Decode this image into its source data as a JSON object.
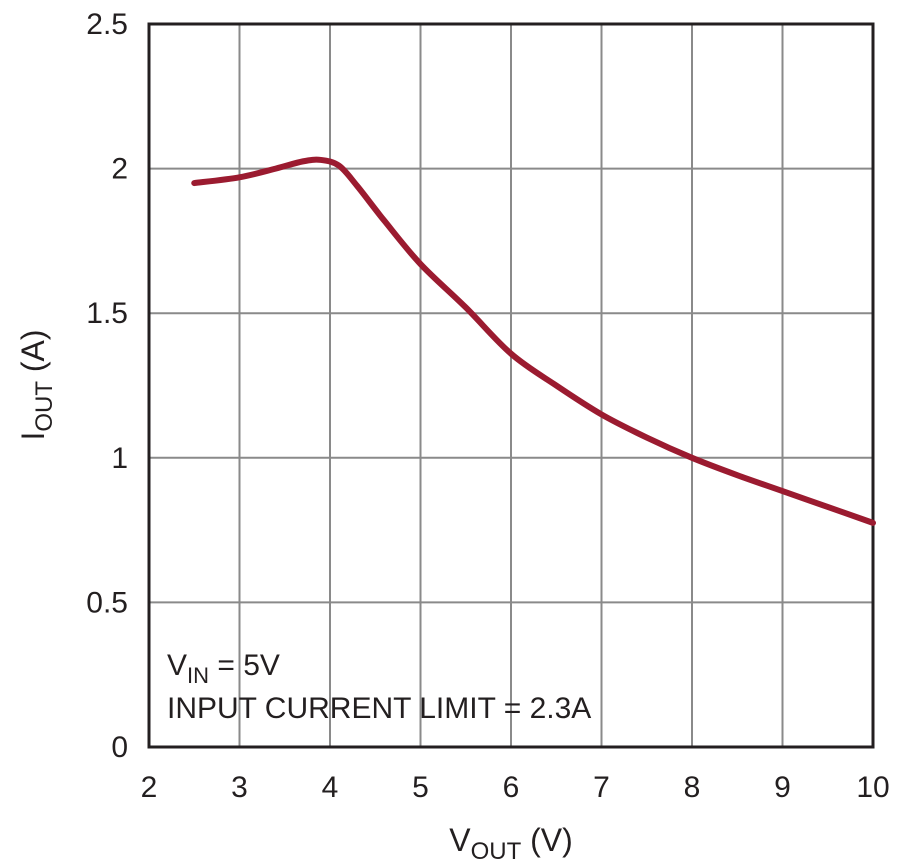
{
  "chart_data": {
    "type": "line",
    "title": "",
    "xlabel": {
      "main": "V",
      "sub": "OUT",
      "unit": " (V)"
    },
    "ylabel": {
      "main": "I",
      "sub": "OUT",
      "unit": " (A)"
    },
    "xlim": [
      2,
      10
    ],
    "ylim": [
      0,
      2.5
    ],
    "xticks": [
      2,
      3,
      4,
      5,
      6,
      7,
      8,
      9,
      10
    ],
    "yticks": [
      0,
      0.5,
      1,
      1.5,
      2,
      2.5
    ],
    "xtick_labels": [
      "2",
      "3",
      "4",
      "5",
      "6",
      "7",
      "8",
      "9",
      "10"
    ],
    "ytick_labels": [
      "0",
      "0.5",
      "1",
      "1.5",
      "2",
      "2.5"
    ],
    "grid": true,
    "line_color": "#9b1b30",
    "series": [
      {
        "x": [
          2.5,
          3.0,
          3.4,
          3.7,
          3.9,
          4.1,
          4.3,
          4.6,
          5.0,
          5.5,
          6.0,
          6.5,
          7.0,
          7.5,
          8.0,
          8.5,
          9.0,
          9.5,
          10.0
        ],
        "y": [
          1.95,
          1.97,
          2.0,
          2.025,
          2.03,
          2.01,
          1.94,
          1.82,
          1.67,
          1.52,
          1.36,
          1.25,
          1.15,
          1.07,
          1.0,
          0.94,
          0.885,
          0.83,
          0.775
        ]
      }
    ],
    "annotations": [
      {
        "main": "V",
        "sub": "IN",
        "rest": " = 5V"
      },
      {
        "text": "INPUT CURRENT LIMIT = 2.3A"
      }
    ]
  }
}
